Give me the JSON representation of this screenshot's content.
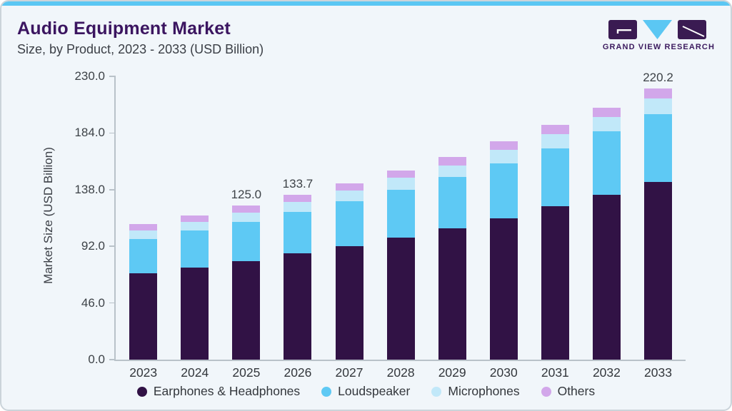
{
  "header": {
    "title": "Audio Equipment Market",
    "subtitle": "Size, by Product, 2023 - 2033 (USD Billion)"
  },
  "logo": {
    "text": "GRAND VIEW RESEARCH",
    "mark_dark_color": "#3a1b52",
    "mark_blue_color": "#5bc7f3"
  },
  "colors": {
    "accent_strip": "#5bc7f3",
    "title_purple": "#3b1560",
    "card_background": "#f1f6fa",
    "axis_line": "#b9c2c9"
  },
  "chart_data": {
    "type": "bar",
    "stacked": true,
    "title": "Audio Equipment Market",
    "subtitle": "Size, by Product, 2023 - 2033 (USD Billion)",
    "ylabel": "Market Size (USD Billion)",
    "xlabel": "",
    "ylim": [
      0,
      230
    ],
    "ytick_labels": [
      "0.0",
      "46.0",
      "92.0",
      "138.0",
      "184.0",
      "230.0"
    ],
    "grid": false,
    "legend_position": "bottom",
    "categories": [
      "2023",
      "2024",
      "2025",
      "2026",
      "2027",
      "2028",
      "2029",
      "2030",
      "2031",
      "2032",
      "2033"
    ],
    "series": [
      {
        "name": "Earphones & Headphones",
        "color": "#311245",
        "values": [
          70.2,
          74.5,
          79.9,
          86.2,
          92.3,
          99.1,
          106.9,
          115.0,
          124.5,
          134.0,
          144.5
        ]
      },
      {
        "name": "Loudspeaker",
        "color": "#5ec9f4",
        "values": [
          27.9,
          30.4,
          32.0,
          33.7,
          36.1,
          38.7,
          41.5,
          44.6,
          47.3,
          51.3,
          55.0
        ]
      },
      {
        "name": "Microphones",
        "color": "#c1e8f9",
        "values": [
          6.8,
          6.8,
          7.6,
          8.1,
          9.1,
          9.8,
          9.4,
          10.5,
          11.6,
          11.9,
          12.6
        ]
      },
      {
        "name": "Others",
        "color": "#d2a7ea",
        "values": [
          5.4,
          5.5,
          5.5,
          5.7,
          5.6,
          5.8,
          6.9,
          7.1,
          7.0,
          7.2,
          8.1
        ]
      }
    ],
    "bar_total_labels": [
      "",
      "",
      "125.0",
      "133.7",
      "",
      "",
      "",
      "",
      "",
      "",
      "220.2"
    ]
  }
}
